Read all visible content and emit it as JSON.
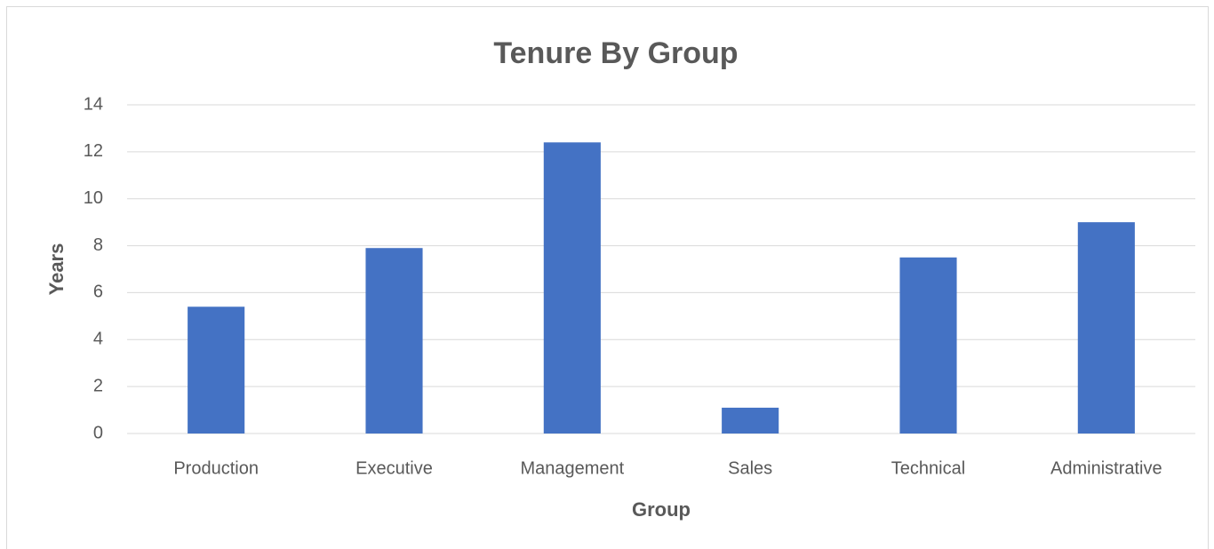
{
  "chart_data": {
    "type": "bar",
    "title": "Tenure By Group",
    "x_label": "Group",
    "y_label": "Years",
    "categories": [
      "Production",
      "Executive",
      "Management",
      "Sales",
      "Technical",
      "Administrative"
    ],
    "values": [
      5.4,
      7.9,
      12.4,
      1.1,
      7.5,
      9.0
    ],
    "color": "#4472c4",
    "ylim": [
      0,
      14
    ],
    "yticks": [
      0,
      2,
      4,
      6,
      8,
      10,
      12,
      14
    ],
    "grid": true
  }
}
